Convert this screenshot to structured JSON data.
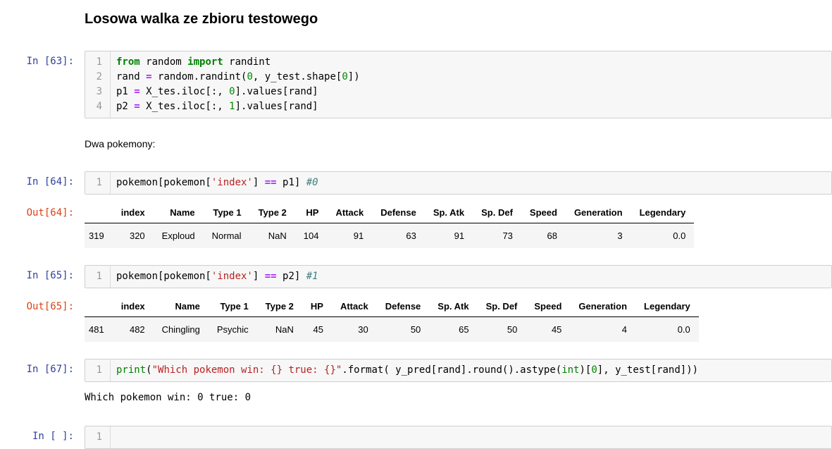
{
  "notebook": {
    "title": "Losowa walka ze zbioru testowego",
    "markdown_note": "Dwa pokemony:",
    "colors": {
      "prompt_in": "#303F9F",
      "prompt_out": "#D84315",
      "keyword": "#008000",
      "builtin": "#008000",
      "number": "#008800",
      "string": "#BA2121",
      "operator": "#AA22FF",
      "comment": "#408080",
      "cell_bg": "#f7f7f7",
      "cell_border": "#cfcfcf",
      "table_stripe": "#f5f5f5"
    },
    "cells": {
      "c63": {
        "prompt": "In [63]:",
        "lines": [
          [
            [
              "k",
              "from"
            ],
            [
              "p",
              " random "
            ],
            [
              "k",
              "import"
            ],
            [
              "p",
              " randint"
            ]
          ],
          [
            [
              "p",
              "rand "
            ],
            [
              "o",
              "="
            ],
            [
              "p",
              " random.randint("
            ],
            [
              "n",
              "0"
            ],
            [
              "p",
              ", y_test.shape["
            ],
            [
              "n",
              "0"
            ],
            [
              "p",
              "])"
            ]
          ],
          [
            [
              "p",
              "p1 "
            ],
            [
              "o",
              "="
            ],
            [
              "p",
              " X_tes.iloc[:, "
            ],
            [
              "n",
              "0"
            ],
            [
              "p",
              "].values[rand]"
            ]
          ],
          [
            [
              "p",
              "p2 "
            ],
            [
              "o",
              "="
            ],
            [
              "p",
              " X_tes.iloc[:, "
            ],
            [
              "n",
              "1"
            ],
            [
              "p",
              "].values[rand]"
            ]
          ]
        ]
      },
      "c64": {
        "prompt": "In [64]:",
        "lines": [
          [
            [
              "p",
              "pokemon[pokemon["
            ],
            [
              "s",
              "'index'"
            ],
            [
              "p",
              "] "
            ],
            [
              "o",
              "=="
            ],
            [
              "p",
              " p1] "
            ],
            [
              "c",
              "#0"
            ]
          ]
        ]
      },
      "o64": {
        "prompt": "Out[64]:",
        "table": {
          "headers": [
            "",
            "index",
            "Name",
            "Type 1",
            "Type 2",
            "HP",
            "Attack",
            "Defense",
            "Sp. Atk",
            "Sp. Def",
            "Speed",
            "Generation",
            "Legendary"
          ],
          "rows": [
            [
              "319",
              "320",
              "Exploud",
              "Normal",
              "NaN",
              "104",
              "91",
              "63",
              "91",
              "73",
              "68",
              "3",
              "0.0"
            ]
          ]
        }
      },
      "c65": {
        "prompt": "In [65]:",
        "lines": [
          [
            [
              "p",
              "pokemon[pokemon["
            ],
            [
              "s",
              "'index'"
            ],
            [
              "p",
              "] "
            ],
            [
              "o",
              "=="
            ],
            [
              "p",
              " p2] "
            ],
            [
              "c",
              "#1"
            ]
          ]
        ]
      },
      "o65": {
        "prompt": "Out[65]:",
        "table": {
          "headers": [
            "",
            "index",
            "Name",
            "Type 1",
            "Type 2",
            "HP",
            "Attack",
            "Defense",
            "Sp. Atk",
            "Sp. Def",
            "Speed",
            "Generation",
            "Legendary"
          ],
          "rows": [
            [
              "481",
              "482",
              "Chingling",
              "Psychic",
              "NaN",
              "45",
              "30",
              "50",
              "65",
              "50",
              "45",
              "4",
              "0.0"
            ]
          ]
        }
      },
      "c67": {
        "prompt": "In [67]:",
        "lines": [
          [
            [
              "b",
              "print"
            ],
            [
              "p",
              "("
            ],
            [
              "s",
              "\"Which pokemon win: {} true: {}\""
            ],
            [
              "p",
              ".format( y_pred[rand].round().astype("
            ],
            [
              "b",
              "int"
            ],
            [
              "p",
              ")["
            ],
            [
              "n",
              "0"
            ],
            [
              "p",
              "], y_test[rand]))"
            ]
          ]
        ]
      },
      "stream67": {
        "text": "Which pokemon win: 0 true: 0"
      },
      "cempty": {
        "prompt": "In [ ]:",
        "lines": [
          []
        ]
      }
    }
  }
}
